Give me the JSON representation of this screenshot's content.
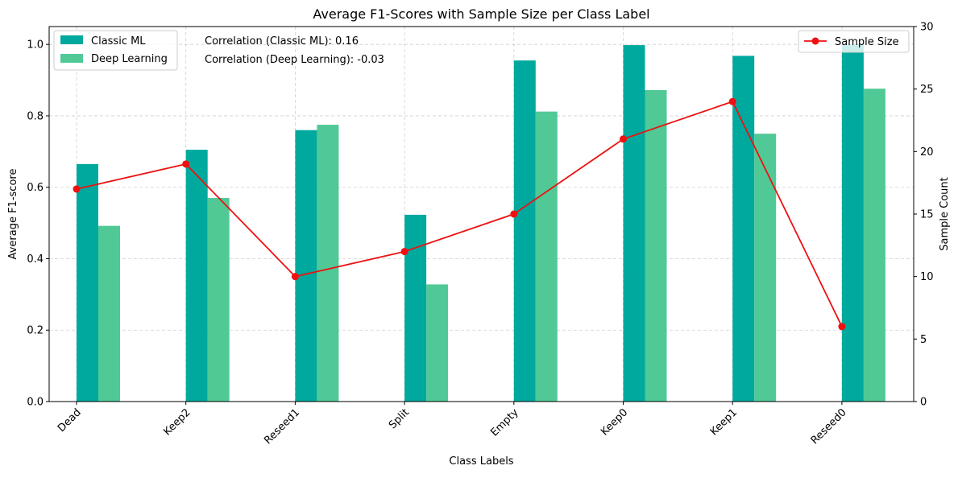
{
  "chart_data": {
    "type": "bar",
    "title": "Average F1-Scores with Sample Size per Class Label",
    "xlabel": "Class Labels",
    "ylabel": "Average F1-score",
    "y2label": "Sample Count",
    "categories": [
      "Dead",
      "Keep2",
      "Reseed1",
      "Split",
      "Empty",
      "Keep0",
      "Keep1",
      "Reseed0"
    ],
    "ylim": [
      0,
      1.05
    ],
    "y2lim": [
      0,
      30
    ],
    "yticks": [
      "0.0",
      "0.2",
      "0.4",
      "0.6",
      "0.8",
      "1.0"
    ],
    "y2ticks": [
      "0",
      "5",
      "10",
      "15",
      "20",
      "25",
      "30"
    ],
    "grid": true,
    "series": [
      {
        "name": "Classic ML",
        "kind": "bar",
        "axis": "left",
        "color": "#00a99d",
        "values": [
          0.665,
          0.705,
          0.76,
          0.523,
          0.955,
          0.998,
          0.968,
          1.0
        ]
      },
      {
        "name": "Deep Learning",
        "kind": "bar",
        "axis": "left",
        "color": "#50c996",
        "values": [
          0.492,
          0.57,
          0.775,
          0.328,
          0.812,
          0.872,
          0.75,
          0.876
        ]
      },
      {
        "name": "Sample Size",
        "kind": "line",
        "axis": "right",
        "color": "#ee1111",
        "values": [
          17,
          19,
          10,
          12,
          15,
          21,
          24,
          6
        ]
      }
    ],
    "annotations": [
      "Correlation (Classic ML): 0.16",
      "Correlation (Deep Learning): -0.03"
    ],
    "legend_left_placement": "top-left",
    "legend_right_placement": "top-right"
  }
}
